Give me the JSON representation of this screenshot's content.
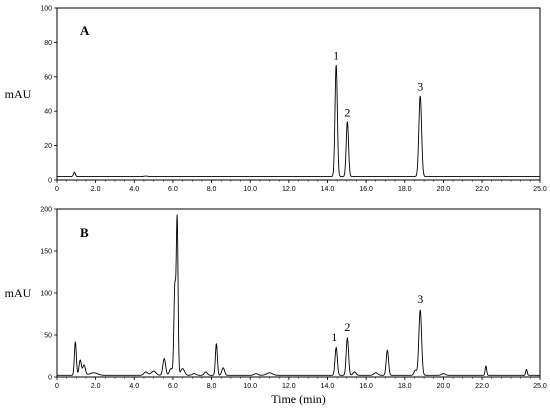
{
  "chart_data": [
    {
      "type": "line",
      "panel_label": "A",
      "xlabel": "",
      "ylabel": "mAU",
      "xlim": [
        0,
        25
      ],
      "ylim": [
        0,
        100
      ],
      "x_ticks": [
        0,
        2,
        4,
        6,
        8,
        10,
        12,
        14,
        16,
        18,
        20,
        22,
        25
      ],
      "x_tick_labels": [
        "0",
        "2.0",
        "4.0",
        "6.0",
        "8.0",
        "10.0",
        "12.0",
        "14.0",
        "16.0",
        "18.0",
        "20.0",
        "22.0",
        "25.0"
      ],
      "y_ticks": [
        0,
        20,
        40,
        60,
        80,
        100
      ],
      "y_tick_labels": [
        "0",
        "20",
        "40",
        "60",
        "80",
        "100"
      ],
      "grid": false,
      "baseline": 2,
      "peaks": [
        {
          "x": 0.9,
          "height": 2.5,
          "width": 0.05
        },
        {
          "x": 4.6,
          "height": 0.3,
          "width": 0.1
        },
        {
          "x": 14.45,
          "height": 65,
          "width": 0.06
        },
        {
          "x": 15.03,
          "height": 32,
          "width": 0.06
        },
        {
          "x": 18.8,
          "height": 47,
          "width": 0.07
        }
      ],
      "peak_labels": [
        {
          "text": "1",
          "x": 14.45,
          "y": 70
        },
        {
          "text": "2",
          "x": 15.03,
          "y": 37
        },
        {
          "text": "3",
          "x": 18.8,
          "y": 52
        }
      ]
    },
    {
      "type": "line",
      "panel_label": "B",
      "xlabel": "Time (min)",
      "ylabel": "mAU",
      "xlim": [
        0,
        25
      ],
      "ylim": [
        0,
        200
      ],
      "x_ticks": [
        0,
        2,
        4,
        6,
        8,
        10,
        12,
        14,
        16,
        18,
        20,
        22,
        25
      ],
      "x_tick_labels": [
        "0",
        "2.0",
        "4.0",
        "6.0",
        "8.0",
        "10.0",
        "12.0",
        "14.0",
        "16.0",
        "18.0",
        "20.0",
        "22.0",
        "25.0"
      ],
      "y_ticks": [
        0,
        50,
        100,
        150,
        200
      ],
      "y_tick_labels": [
        "0",
        "50",
        "100",
        "150",
        "200"
      ],
      "grid": false,
      "baseline": 2,
      "peaks": [
        {
          "x": 0.95,
          "height": 40,
          "width": 0.05
        },
        {
          "x": 1.2,
          "height": 18,
          "width": 0.06
        },
        {
          "x": 1.4,
          "height": 12,
          "width": 0.07
        },
        {
          "x": 1.9,
          "height": 3,
          "width": 0.2
        },
        {
          "x": 4.6,
          "height": 4,
          "width": 0.1
        },
        {
          "x": 5.0,
          "height": 5,
          "width": 0.12
        },
        {
          "x": 5.55,
          "height": 20,
          "width": 0.07
        },
        {
          "x": 5.9,
          "height": 8,
          "width": 0.08
        },
        {
          "x": 6.1,
          "height": 105,
          "width": 0.05
        },
        {
          "x": 6.22,
          "height": 185,
          "width": 0.045
        },
        {
          "x": 6.5,
          "height": 8,
          "width": 0.1
        },
        {
          "x": 7.1,
          "height": 2,
          "width": 0.1
        },
        {
          "x": 7.7,
          "height": 4,
          "width": 0.08
        },
        {
          "x": 8.25,
          "height": 38,
          "width": 0.05
        },
        {
          "x": 8.6,
          "height": 9,
          "width": 0.07
        },
        {
          "x": 10.3,
          "height": 2,
          "width": 0.1
        },
        {
          "x": 11.0,
          "height": 3,
          "width": 0.15
        },
        {
          "x": 14.45,
          "height": 33,
          "width": 0.06
        },
        {
          "x": 15.03,
          "height": 45,
          "width": 0.06
        },
        {
          "x": 15.4,
          "height": 4,
          "width": 0.08
        },
        {
          "x": 16.5,
          "height": 3,
          "width": 0.1
        },
        {
          "x": 17.1,
          "height": 30,
          "width": 0.06
        },
        {
          "x": 18.55,
          "height": 6,
          "width": 0.07
        },
        {
          "x": 18.8,
          "height": 78,
          "width": 0.07
        },
        {
          "x": 20.0,
          "height": 2,
          "width": 0.1
        },
        {
          "x": 22.2,
          "height": 11,
          "width": 0.04
        },
        {
          "x": 24.3,
          "height": 7,
          "width": 0.04
        }
      ],
      "peak_labels": [
        {
          "text": "1",
          "x": 14.35,
          "y": 43
        },
        {
          "text": "2",
          "x": 15.03,
          "y": 55
        },
        {
          "text": "3",
          "x": 18.8,
          "y": 88
        }
      ]
    }
  ]
}
